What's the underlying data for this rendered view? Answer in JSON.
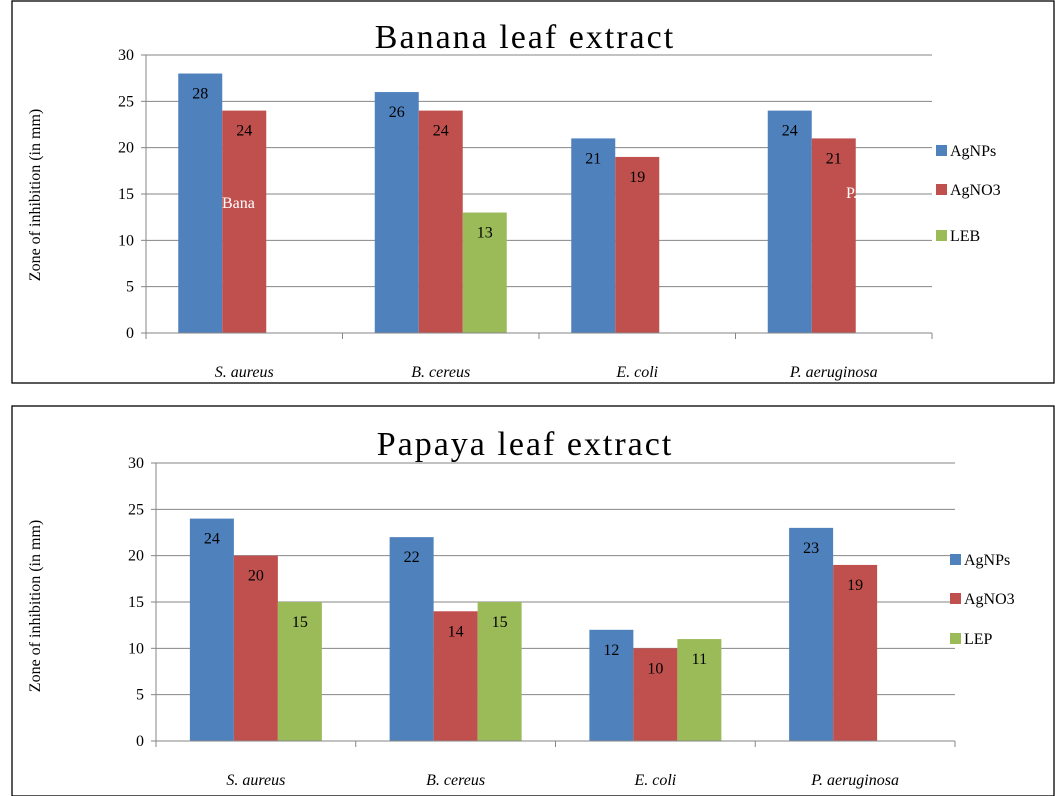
{
  "chart_data": [
    {
      "type": "bar",
      "title": "Banana leaf extract",
      "ylabel": "Zone of inhibition (in mm)",
      "xlabel": "",
      "categories": [
        "S. aureus",
        "B. cereus",
        "E. coli",
        "P. aeruginosa"
      ],
      "series": [
        {
          "name": "AgNPs",
          "values": [
            28,
            26,
            21,
            24
          ]
        },
        {
          "name": "AgNO3",
          "values": [
            24,
            24,
            19,
            21
          ]
        },
        {
          "name": "LEB",
          "values": [
            null,
            13,
            null,
            null
          ]
        }
      ],
      "ylim": [
        0,
        30
      ],
      "yticks": [
        "0",
        "5",
        "10",
        "15",
        "20",
        "25",
        "30"
      ],
      "grid": true,
      "legend": "right",
      "overlay_fragments": [
        "Bana",
        "P..."
      ]
    },
    {
      "type": "bar",
      "title": "Papaya leaf extract",
      "ylabel": "Zone of inhibition (in mm)",
      "xlabel": "",
      "categories": [
        "S. aureus",
        "B. cereus",
        "E. coli",
        "P. aeruginosa"
      ],
      "series": [
        {
          "name": "AgNPs",
          "values": [
            24,
            22,
            12,
            23
          ]
        },
        {
          "name": "AgNO3",
          "values": [
            20,
            14,
            10,
            19
          ]
        },
        {
          "name": "LEP",
          "values": [
            15,
            15,
            11,
            null
          ]
        }
      ],
      "ylim": [
        0,
        30
      ],
      "yticks": [
        "0",
        "5",
        "10",
        "15",
        "20",
        "25",
        "30"
      ],
      "grid": true,
      "legend": "right"
    }
  ],
  "colors": {
    "series": [
      "#4F81BD",
      "#C0504D",
      "#9BBB59"
    ],
    "grid": "#868686",
    "frame": "#000000"
  }
}
